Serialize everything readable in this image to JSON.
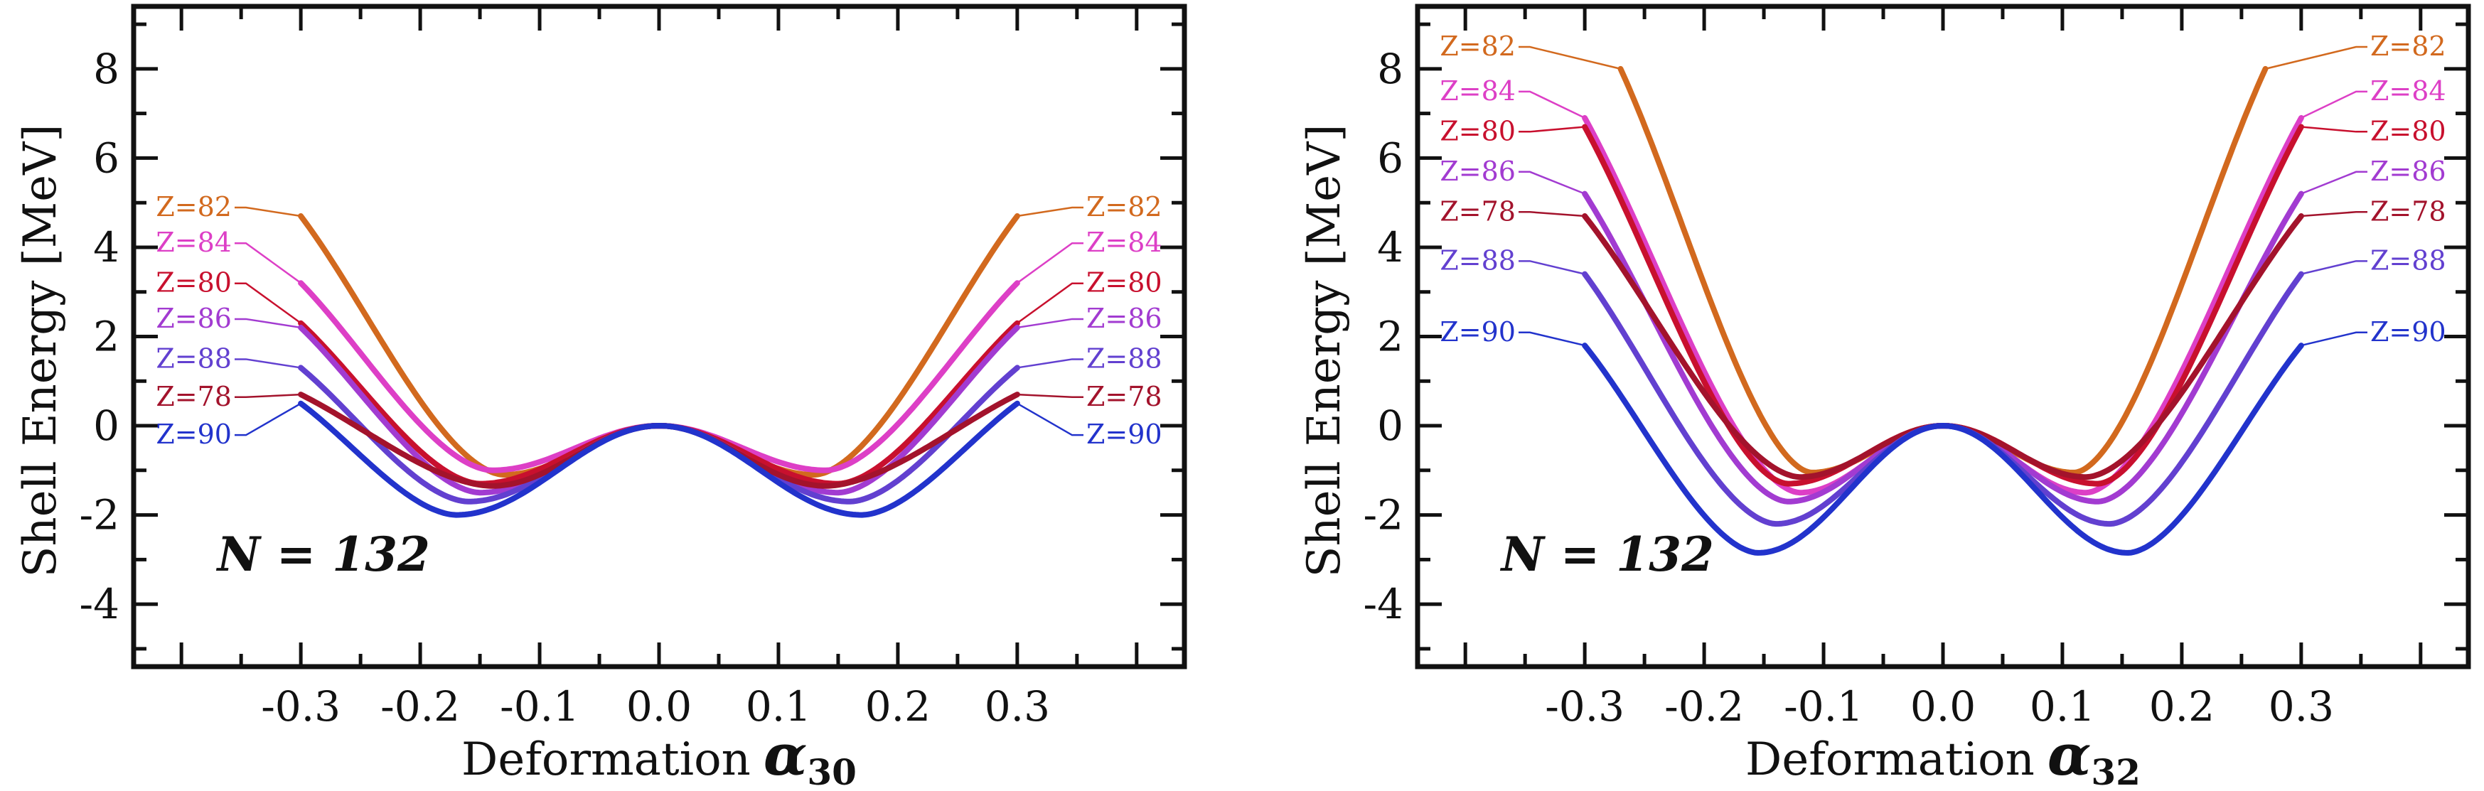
{
  "figure": {
    "panel_count": 2
  },
  "chart_data": [
    {
      "type": "line",
      "xlabel": "Deformation",
      "xlabel_symbol": "α",
      "xlabel_subscript": "30",
      "ylabel": "Shell Energy [MeV]",
      "annotation": "N = 132",
      "xlim": [
        -0.44,
        0.44
      ],
      "ylim": [
        -5.4,
        9.4
      ],
      "xticks": [
        -0.3,
        -0.2,
        -0.1,
        0.0,
        0.1,
        0.2,
        0.3
      ],
      "xtick_labels": [
        "-0.3",
        "-0.2",
        "-0.1",
        "0.0",
        "0.1",
        "0.2",
        "0.3"
      ],
      "yticks": [
        -4,
        -2,
        0,
        2,
        4,
        6,
        8
      ],
      "ytick_labels": [
        "-4",
        "-2",
        "0",
        "2",
        "4",
        "6",
        "8"
      ],
      "grid": false,
      "series": [
        {
          "name": "Z=82",
          "color": "#D2691E",
          "end_value": 4.7,
          "min_x": 0.13,
          "min_value": -1.1,
          "label_value": 4.7
        },
        {
          "name": "Z=84",
          "color": "#DD3FC6",
          "end_value": 3.2,
          "min_x": 0.14,
          "min_value": -1.0,
          "label_value": 3.9
        },
        {
          "name": "Z=80",
          "color": "#C8102E",
          "end_value": 2.3,
          "min_x": 0.15,
          "min_value": -1.3,
          "label_value": 3.0
        },
        {
          "name": "Z=86",
          "color": "#A23BD1",
          "end_value": 2.2,
          "min_x": 0.15,
          "min_value": -1.5,
          "label_value": 2.2
        },
        {
          "name": "Z=88",
          "color": "#6240D0",
          "end_value": 1.3,
          "min_x": 0.16,
          "min_value": -1.7,
          "label_value": 1.3
        },
        {
          "name": "Z=78",
          "color": "#A3132C",
          "end_value": 0.7,
          "min_x": 0.14,
          "min_value": -1.35,
          "label_value": 0.45
        },
        {
          "name": "Z=90",
          "color": "#2233CC",
          "end_value": 0.5,
          "min_x": 0.17,
          "min_value": -2.0,
          "label_value": -0.4
        }
      ]
    },
    {
      "type": "line",
      "xlabel": "Deformation",
      "xlabel_symbol": "α",
      "xlabel_subscript": "32",
      "ylabel": "Shell Energy [MeV]",
      "annotation": "N = 132",
      "xlim": [
        -0.44,
        0.44
      ],
      "ylim": [
        -5.4,
        9.4
      ],
      "xticks": [
        -0.3,
        -0.2,
        -0.1,
        0.0,
        0.1,
        0.2,
        0.3
      ],
      "xtick_labels": [
        "-0.3",
        "-0.2",
        "-0.1",
        "0.0",
        "0.1",
        "0.2",
        "0.3"
      ],
      "yticks": [
        -4,
        -2,
        0,
        2,
        4,
        6,
        8
      ],
      "ytick_labels": [
        "-4",
        "-2",
        "0",
        "2",
        "4",
        "6",
        "8"
      ],
      "grid": false,
      "series": [
        {
          "name": "Z=82",
          "color": "#D2691E",
          "end_x": 0.27,
          "end_value": 8.0,
          "min_x": 0.11,
          "min_value": -1.05,
          "label_value": 8.3
        },
        {
          "name": "Z=84",
          "color": "#DD3FC6",
          "end_x": 0.3,
          "end_value": 6.9,
          "min_x": 0.12,
          "min_value": -1.5,
          "label_value": 7.3
        },
        {
          "name": "Z=80",
          "color": "#C8102E",
          "end_x": 0.3,
          "end_value": 6.7,
          "min_x": 0.13,
          "min_value": -1.3,
          "label_value": 6.4
        },
        {
          "name": "Z=86",
          "color": "#A23BD1",
          "end_x": 0.3,
          "end_value": 5.2,
          "min_x": 0.13,
          "min_value": -1.7,
          "label_value": 5.5
        },
        {
          "name": "Z=78",
          "color": "#A3132C",
          "end_x": 0.3,
          "end_value": 4.7,
          "min_x": 0.12,
          "min_value": -1.15,
          "label_value": 4.6
        },
        {
          "name": "Z=88",
          "color": "#6240D0",
          "end_x": 0.3,
          "end_value": 3.4,
          "min_x": 0.14,
          "min_value": -2.2,
          "label_value": 3.5
        },
        {
          "name": "Z=90",
          "color": "#2233CC",
          "end_x": 0.3,
          "end_value": 1.8,
          "min_x": 0.155,
          "min_value": -2.85,
          "label_value": 1.9
        }
      ]
    }
  ]
}
